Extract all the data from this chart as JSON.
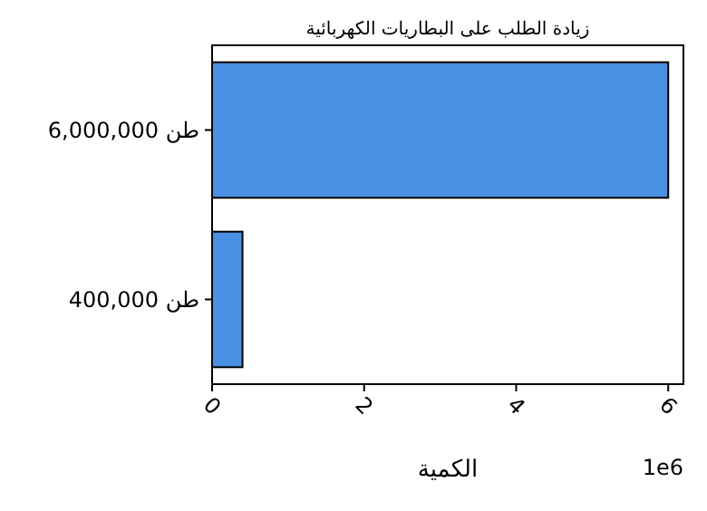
{
  "chart_data": {
    "type": "bar",
    "orientation": "horizontal",
    "title": "زيادة الطلب على البطاريات الكهربائية",
    "xlabel": "الكمية",
    "categories": [
      "6,000,000 طن",
      "400,000 طن"
    ],
    "values": [
      6,
      0.4
    ],
    "color": "#4a90e2",
    "xlim": [
      0,
      6.2
    ],
    "xticks": [
      0,
      2,
      4,
      6
    ],
    "annotations": [
      "1e6"
    ],
    "grid": false
  }
}
